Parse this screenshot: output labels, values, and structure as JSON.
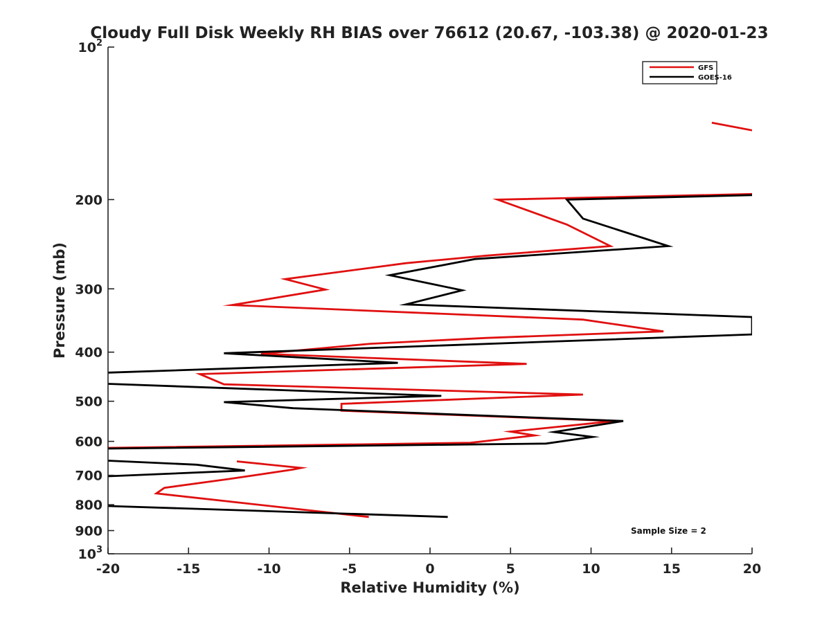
{
  "chart_data": {
    "type": "line",
    "title": "Cloudy Full Disk Weekly RH BIAS over 76612 (20.67, -103.38) @ 2020-01-23",
    "xlabel": "Relative Humidity (%)",
    "ylabel": "Pressure (mb)",
    "xlim": [
      -20,
      20
    ],
    "ylim": [
      100,
      1000
    ],
    "yscale": "log",
    "y_reversed": true,
    "grid": false,
    "legend_location": "top-right",
    "x_ticks": [
      -20,
      -15,
      -10,
      -5,
      0,
      5,
      10,
      15,
      20
    ],
    "x_tick_labels": [
      "-20",
      "-15",
      "-10",
      "-5",
      "0",
      "5",
      "10",
      "15",
      "20"
    ],
    "y_ticks": [
      100,
      200,
      300,
      400,
      500,
      600,
      700,
      800,
      900,
      1000
    ],
    "y_tick_labels": [
      {
        "base": "10",
        "sup": "2"
      },
      {
        "base": "200",
        "sup": ""
      },
      {
        "base": "300",
        "sup": ""
      },
      {
        "base": "400",
        "sup": ""
      },
      {
        "base": "500",
        "sup": ""
      },
      {
        "base": "600",
        "sup": ""
      },
      {
        "base": "700",
        "sup": ""
      },
      {
        "base": "800",
        "sup": ""
      },
      {
        "base": "900",
        "sup": ""
      },
      {
        "base": "10",
        "sup": "3"
      }
    ],
    "annotation": "Sample Size = 2",
    "series": [
      {
        "name": "GFS",
        "color": "#e01010",
        "segments": [
          [
            [
              17.5,
              141
            ],
            [
              20,
              146
            ]
          ],
          [
            [
              20,
              195
            ],
            [
              4.2,
              200
            ],
            [
              8.5,
              224
            ],
            [
              11.2,
              247
            ],
            [
              3.5,
              258
            ],
            [
              -1.5,
              267
            ],
            [
              -9,
              287
            ],
            [
              -6.5,
              301
            ],
            [
              -12.3,
              323
            ],
            [
              9.5,
              345
            ],
            [
              14.5,
              364
            ],
            [
              3.5,
              375
            ],
            [
              -3.7,
              385
            ],
            [
              -10.5,
              403
            ],
            [
              6,
              422
            ],
            [
              -14.3,
              442
            ],
            [
              -12.8,
              463
            ],
            [
              9.5,
              485
            ],
            [
              -5.5,
              506
            ],
            [
              -5.5,
              522
            ],
            [
              11.5,
              547
            ],
            [
              5,
              574
            ],
            [
              6.5,
              584
            ],
            [
              2.5,
              604
            ],
            [
              -20,
              618
            ]
          ],
          [
            [
              -12,
              657
            ],
            [
              -8,
              677
            ],
            [
              -8.5,
              682
            ],
            [
              -12.5,
              712
            ],
            [
              -16.5,
              741
            ],
            [
              -17,
              760
            ],
            [
              -3.8,
              846
            ]
          ]
        ]
      },
      {
        "name": "GOES-16",
        "color": "#000000",
        "segments": [
          [
            [
              20,
              196
            ],
            [
              8.5,
              200
            ],
            [
              9.5,
              218
            ],
            [
              14.8,
              247
            ],
            [
              2.8,
              262
            ],
            [
              -2.5,
              282
            ],
            [
              2,
              302
            ],
            [
              -1.5,
              322
            ],
            [
              20,
              341
            ],
            [
              20,
              369
            ],
            [
              -12.8,
              402
            ],
            [
              -2,
              420
            ],
            [
              -20,
              439
            ]
          ],
          [
            [
              -20,
              462
            ],
            [
              0.7,
              488
            ],
            [
              -12.8,
              502
            ],
            [
              -8.5,
              516
            ],
            [
              12,
              547
            ],
            [
              7.7,
              575
            ],
            [
              10.1,
              588
            ],
            [
              7.2,
              606
            ],
            [
              -20,
              620
            ]
          ],
          [
            [
              -20,
              655
            ],
            [
              -14.5,
              667
            ],
            [
              -11.5,
              685
            ],
            [
              -20,
              703
            ]
          ],
          [
            [
              -20,
              805
            ],
            [
              1.1,
              846
            ]
          ]
        ]
      }
    ]
  }
}
